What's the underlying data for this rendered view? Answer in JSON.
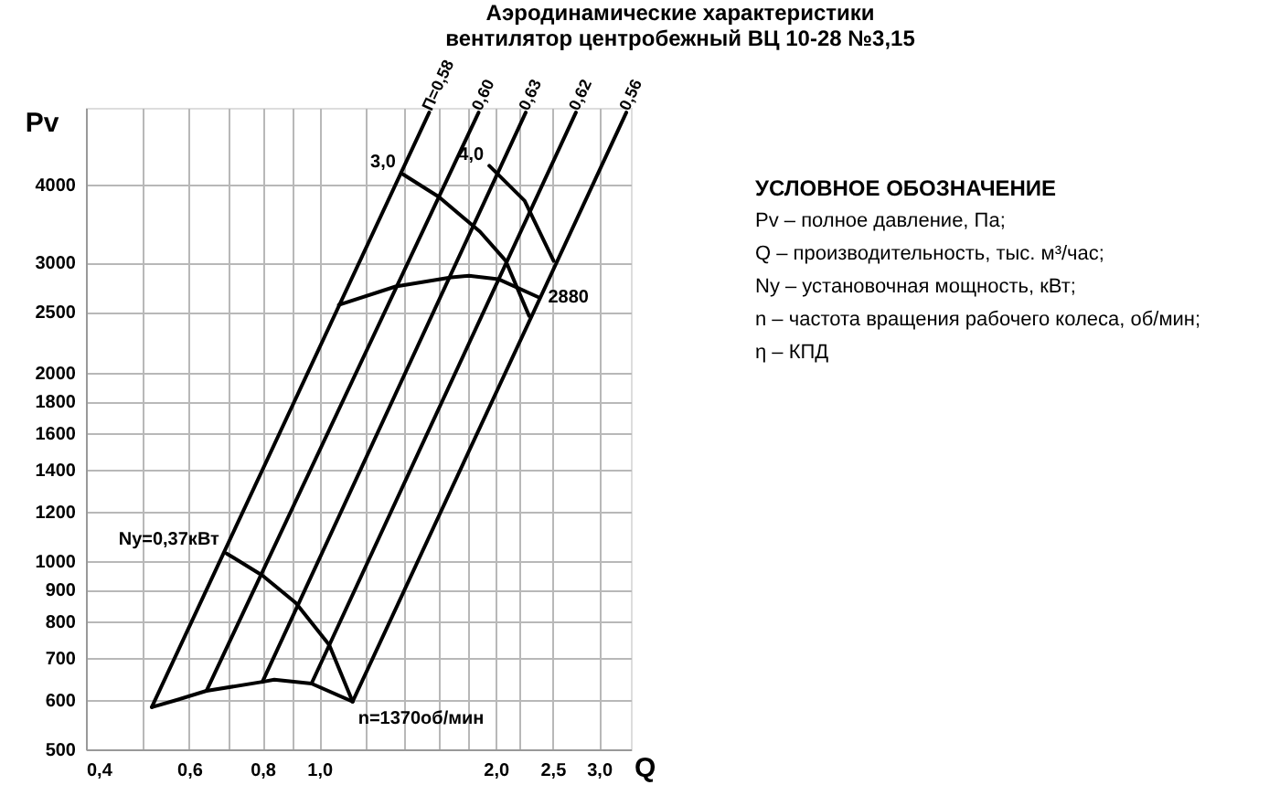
{
  "chart_data": {
    "type": "line",
    "title": "Аэродинамические характеристики",
    "subtitle": "вентилятор центробежный ВЦ 10-28 №3,15",
    "xlabel": "Q",
    "ylabel": "Pv",
    "log": "xy",
    "xlim": [
      0.4,
      3.4
    ],
    "ylim": [
      500,
      5300
    ],
    "xticks": [
      {
        "value": 0.4,
        "label": "0,4"
      },
      {
        "value": 0.5,
        "label": null
      },
      {
        "value": 0.6,
        "label": "0,6"
      },
      {
        "value": 0.7,
        "label": null
      },
      {
        "value": 0.8,
        "label": "0,8"
      },
      {
        "value": 0.9,
        "label": null
      },
      {
        "value": 1.0,
        "label": "1,0"
      },
      {
        "value": 1.2,
        "label": null
      },
      {
        "value": 1.4,
        "label": null
      },
      {
        "value": 1.6,
        "label": null
      },
      {
        "value": 1.8,
        "label": null
      },
      {
        "value": 2.0,
        "label": "2,0"
      },
      {
        "value": 2.2,
        "label": null
      },
      {
        "value": 2.5,
        "label": "2,5"
      },
      {
        "value": 3.0,
        "label": "3,0"
      }
    ],
    "yticks": [
      500,
      600,
      700,
      800,
      900,
      1000,
      1200,
      1400,
      1600,
      1800,
      2000,
      2500,
      3000,
      4000
    ],
    "grid": true,
    "legend": false,
    "marker": "none",
    "line_style": "solid",
    "series": [
      {
        "name": "П=0,58",
        "color": "#000000",
        "x": [
          0.518,
          1.54
        ],
        "values": [
          584,
          5210
        ]
      },
      {
        "name": "0,60",
        "color": "#000000",
        "x": [
          0.642,
          1.87
        ],
        "values": [
          620,
          5210
        ]
      },
      {
        "name": "0,63",
        "color": "#000000",
        "x": [
          0.8,
          2.25
        ],
        "values": [
          641,
          5210
        ]
      },
      {
        "name": "0,62",
        "color": "#000000",
        "x": [
          0.97,
          2.74
        ],
        "values": [
          637,
          5210
        ]
      },
      {
        "name": "0,56",
        "color": "#000000",
        "x": [
          1.14,
          3.34
        ],
        "values": [
          596,
          5210
        ]
      },
      {
        "color": "#000000",
        "x": [
          0.518,
          0.573,
          0.642,
          0.8,
          0.838,
          0.97,
          1.14
        ],
        "values": [
          584,
          600,
          620,
          641,
          646,
          637,
          596
        ]
      },
      {
        "color": "#000000",
        "x": [
          0.695,
          0.8,
          0.912,
          1.04,
          1.14
        ],
        "values": [
          1028,
          948,
          857,
          734,
          596
        ]
      },
      {
        "color": "#000000",
        "x": [
          1.08,
          1.35,
          1.68,
          1.8,
          2.02,
          2.37
        ],
        "values": [
          2567,
          2746,
          2841,
          2857,
          2822,
          2638
        ]
      },
      {
        "color": "#000000",
        "x": [
          1.38,
          1.6,
          1.88,
          2.08,
          2.28
        ],
        "values": [
          4168,
          3818,
          3360,
          3018,
          2465
        ]
      },
      {
        "color": "#000000",
        "x": [
          1.95,
          2.24,
          2.51
        ],
        "values": [
          4282,
          3766,
          3018
        ]
      }
    ],
    "annotations": [
      {
        "text": "3,0",
        "x": 1.38,
        "y": 4168
      },
      {
        "text": "4,0",
        "x": 1.95,
        "y": 4282
      },
      {
        "text": "2880",
        "x": 2.37,
        "y": 2638
      },
      {
        "text": "Ny=0,37кВт",
        "x": 0.695,
        "y": 1028
      },
      {
        "text": "n=1370об/мин",
        "x": 1.14,
        "y": 596
      },
      "УСЛОВНОЕ ОБОЗНАЧЕНИЕ",
      "Pv – полное давление, Па;",
      "Q – производительность, тыс. м³/час;",
      "Ny – установочная мощность, кВт;",
      "n – частота вращения рабочего колеса, об/мин;",
      "η – КПД"
    ]
  }
}
